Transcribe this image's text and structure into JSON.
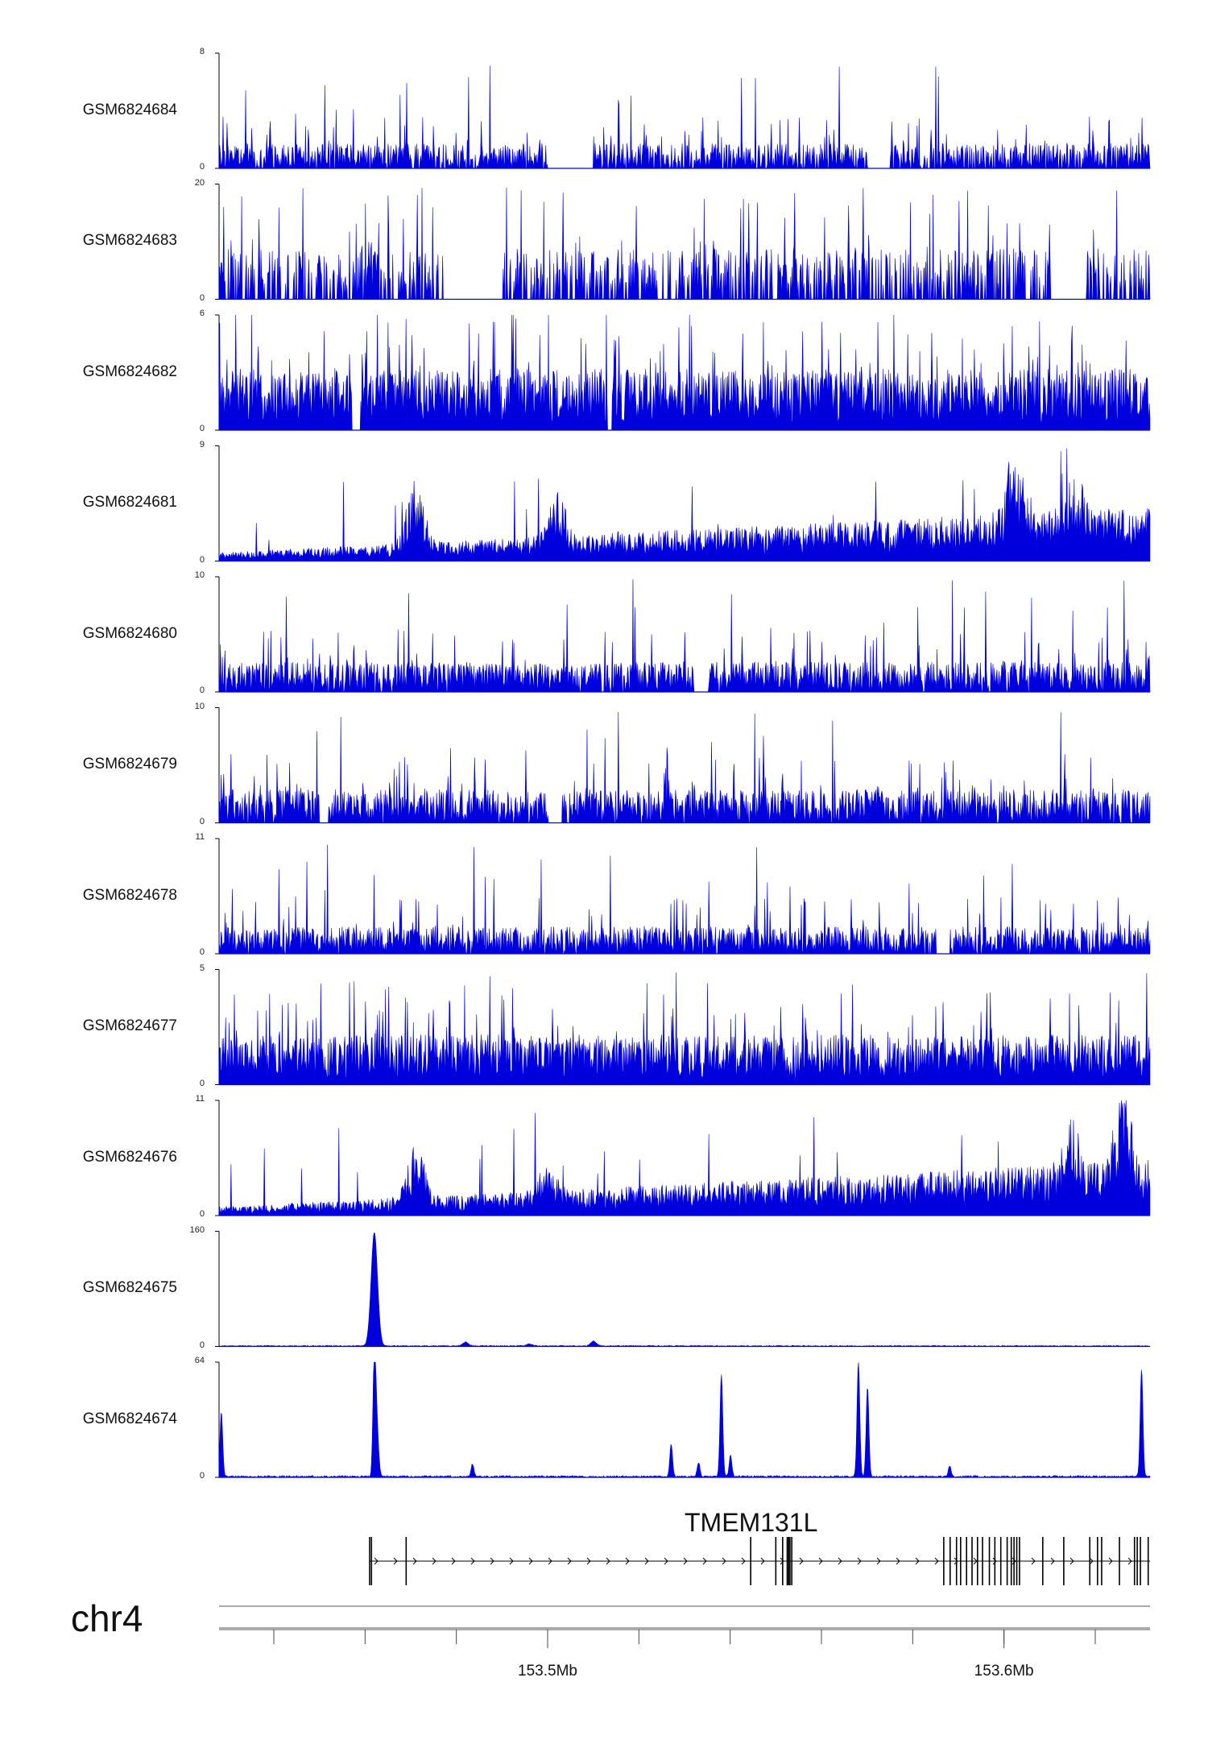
{
  "chart_data": {
    "type": "area",
    "colors": {
      "signal": "#0000dd",
      "axis": "#000000",
      "gene": "#000000"
    },
    "x_axis": {
      "chromosome": "chr4",
      "start_mb": 153.428,
      "end_mb": 153.632,
      "tick_step_mb": 0.02,
      "labeled_ticks": [
        {
          "value_mb": 153.5,
          "label": "153.5Mb"
        },
        {
          "value_mb": 153.6,
          "label": "153.6Mb"
        }
      ]
    },
    "tracks": [
      {
        "name": "GSM6824684",
        "ymax": 8,
        "ymin": 0,
        "ylabel_max": "8",
        "ylabel_min": "0",
        "pattern": "sparse_spiky",
        "base_level": 1.2,
        "spike_height": 7.6,
        "gaps": [
          [
            153.5,
            153.51
          ],
          [
            153.57,
            153.575
          ]
        ]
      },
      {
        "name": "GSM6824683",
        "ymax": 20,
        "ymin": 0,
        "ylabel_max": "20",
        "ylabel_min": "0",
        "pattern": "sparse_triangles",
        "base_level": 4,
        "spike_height": 19.5,
        "gaps": [
          [
            153.477,
            153.49
          ],
          [
            153.61,
            153.618
          ]
        ]
      },
      {
        "name": "GSM6824682",
        "ymax": 6,
        "ymin": 0,
        "ylabel_max": "6",
        "ylabel_min": "0",
        "pattern": "dense_spiky",
        "base_level": 2.2,
        "spike_height": 5.8,
        "gaps": [
          [
            153.457,
            153.459
          ],
          [
            153.513,
            153.514
          ]
        ]
      },
      {
        "name": "GSM6824681",
        "ymax": 9,
        "ymin": 0,
        "ylabel_max": "9",
        "ylabel_min": "0",
        "pattern": "rising_broad",
        "base_level": 0.8,
        "spike_height": 8.8,
        "broad_peaks": [
          [
            153.471,
            7.0
          ],
          [
            153.502,
            4.5
          ],
          [
            153.602,
            7.0
          ],
          [
            153.615,
            5.0
          ]
        ]
      },
      {
        "name": "GSM6824680",
        "ymax": 10,
        "ymin": 0,
        "ylabel_max": "10",
        "ylabel_min": "0",
        "pattern": "moderate_spiky",
        "base_level": 1.8,
        "spike_height": 9.8,
        "gaps": [
          [
            153.532,
            153.535
          ]
        ]
      },
      {
        "name": "GSM6824679",
        "ymax": 10,
        "ymin": 0,
        "ylabel_max": "10",
        "ylabel_min": "0",
        "pattern": "moderate_spiky",
        "base_level": 2.0,
        "spike_height": 9.8,
        "gaps": [
          [
            153.45,
            153.452
          ],
          [
            153.5,
            153.503
          ]
        ]
      },
      {
        "name": "GSM6824678",
        "ymax": 11,
        "ymin": 0,
        "ylabel_max": "11",
        "ylabel_min": "0",
        "pattern": "moderate_spiky",
        "base_level": 1.8,
        "spike_height": 10.5,
        "gaps": [
          [
            153.585,
            153.588
          ]
        ]
      },
      {
        "name": "GSM6824677",
        "ymax": 5,
        "ymin": 0,
        "ylabel_max": "5",
        "ylabel_min": "0",
        "pattern": "dense_spiky",
        "base_level": 1.5,
        "spike_height": 4.9,
        "gaps": []
      },
      {
        "name": "GSM6824676",
        "ymax": 11,
        "ymin": 0,
        "ylabel_max": "11",
        "ylabel_min": "0",
        "pattern": "rising_broad",
        "base_level": 1.0,
        "spike_height": 10.8,
        "broad_peaks": [
          [
            153.471,
            7.0
          ],
          [
            153.5,
            4.0
          ],
          [
            153.615,
            6.0
          ],
          [
            153.626,
            9.0
          ]
        ]
      },
      {
        "name": "GSM6824675",
        "ymax": 160,
        "ymin": 0,
        "ylabel_max": "160",
        "ylabel_min": "0",
        "pattern": "peaks",
        "base_level": 1.5,
        "peaks": [
          [
            153.462,
            158,
            0.0007
          ],
          [
            153.482,
            5,
            0.0006
          ],
          [
            153.496,
            3,
            0.0006
          ],
          [
            153.51,
            7,
            0.0006
          ]
        ]
      },
      {
        "name": "GSM6824674",
        "ymax": 64,
        "ymin": 0,
        "ylabel_max": "64",
        "ylabel_min": "0",
        "pattern": "peaks",
        "base_level": 1.0,
        "peaks": [
          [
            153.4285,
            36,
            0.0003
          ],
          [
            153.462,
            62,
            0.0003
          ],
          [
            153.4625,
            30,
            0.0004
          ],
          [
            153.4835,
            7,
            0.0003
          ],
          [
            153.527,
            18,
            0.0003
          ],
          [
            153.533,
            8,
            0.0003
          ],
          [
            153.538,
            57,
            0.0003
          ],
          [
            153.54,
            12,
            0.0003
          ],
          [
            153.568,
            64,
            0.0003
          ],
          [
            153.57,
            50,
            0.0003
          ],
          [
            153.588,
            6,
            0.0003
          ],
          [
            153.63,
            60,
            0.0003
          ]
        ]
      }
    ],
    "gene": {
      "name": "TMEM131L",
      "strand": "+",
      "start_mb": 153.461,
      "end_mb": 153.632,
      "exons_mb": [
        153.461,
        153.4614,
        153.469,
        153.5445,
        153.55,
        153.5515,
        153.5525,
        153.5528,
        153.5531,
        153.5535,
        153.5868,
        153.5882,
        153.5896,
        153.5905,
        153.5918,
        153.593,
        153.5942,
        153.5953,
        153.5968,
        153.598,
        153.5993,
        153.6007,
        153.6016,
        153.6022,
        153.6028,
        153.6034,
        153.6085,
        153.6131,
        153.6188,
        153.6205,
        153.6214,
        153.6253,
        153.6286,
        153.6292,
        153.6299,
        153.6316
      ]
    }
  }
}
